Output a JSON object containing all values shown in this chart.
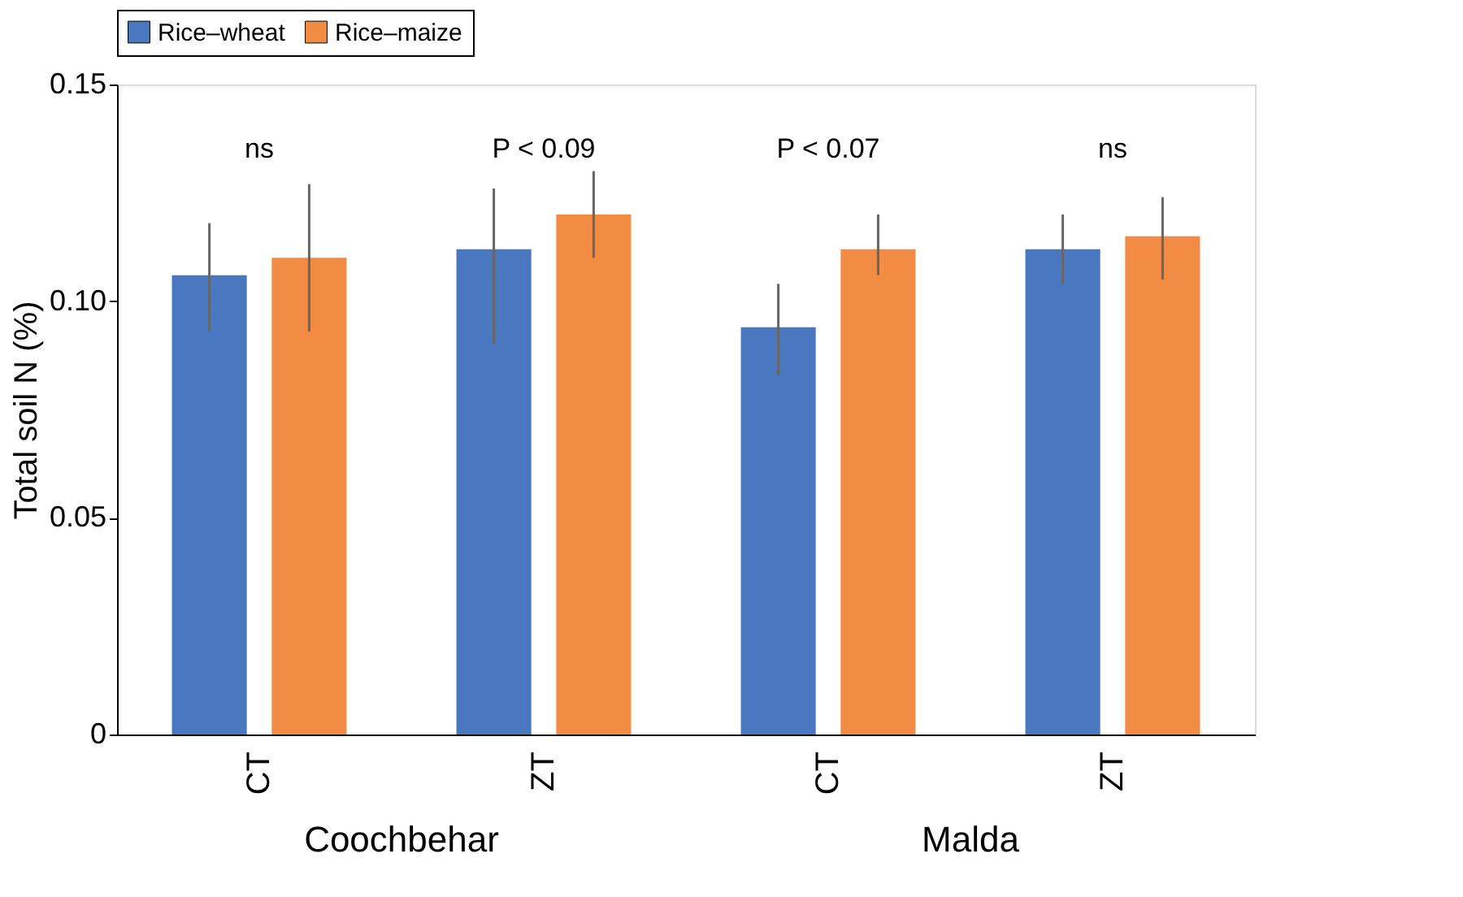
{
  "chart_data": {
    "type": "bar",
    "ylabel": "Total soil N (%)",
    "categories": [
      "CT",
      "ZT",
      "CT",
      "ZT"
    ],
    "series": [
      {
        "name": "Rice–wheat",
        "color": "#4a78c0",
        "values": [
          0.106,
          0.112,
          0.094,
          0.112
        ],
        "errors": [
          [
            0.093,
            0.118
          ],
          [
            0.09,
            0.126
          ],
          [
            0.083,
            0.104
          ],
          [
            0.104,
            0.12
          ]
        ]
      },
      {
        "name": "Rice–maize",
        "color": "#f28c45",
        "values": [
          0.11,
          0.12,
          0.112,
          0.115
        ],
        "errors": [
          [
            0.093,
            0.127
          ],
          [
            0.11,
            0.13
          ],
          [
            0.106,
            0.12
          ],
          [
            0.105,
            0.124
          ]
        ]
      }
    ],
    "ylim": [
      0,
      0.15
    ],
    "yticks": [
      0,
      0.05,
      {
        "value": 0.1,
        "label": "0.10"
      },
      {
        "value": 0.15,
        "label": "0.15"
      }
    ],
    "annotations": [
      "ns",
      "P < 0.09",
      "P < 0.07",
      "ns",
      "Coochbehar",
      "Malda"
    ],
    "grid": false,
    "legend": "top"
  }
}
